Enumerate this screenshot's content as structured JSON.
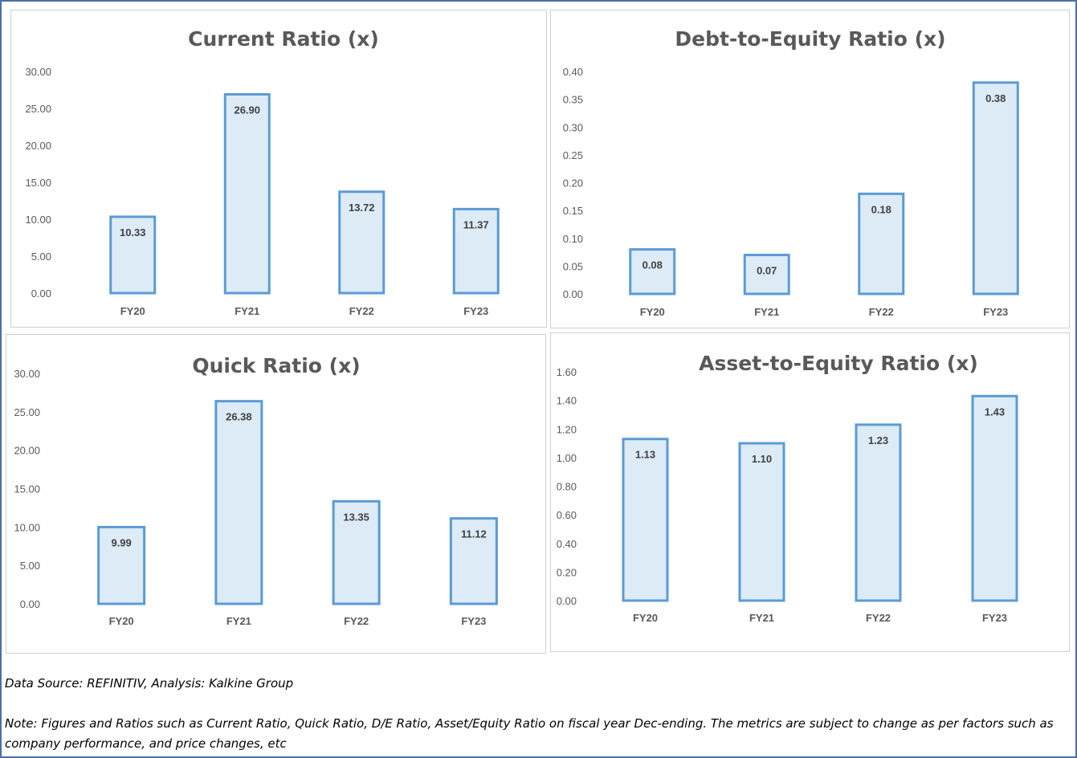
{
  "chart_data": [
    {
      "type": "bar",
      "title": "Current Ratio (x)",
      "categories": [
        "FY20",
        "FY21",
        "FY22",
        "FY23"
      ],
      "values": [
        10.33,
        26.9,
        13.72,
        11.37
      ],
      "data_labels": [
        "10.33",
        "26.90",
        "13.72",
        "11.37"
      ],
      "yticks": [
        "0.00",
        "5.00",
        "10.00",
        "15.00",
        "20.00",
        "25.00",
        "30.00"
      ],
      "ylim": [
        0,
        30
      ],
      "grid": false,
      "legend": "none",
      "bar_fill": "#ddebf7",
      "bar_outline": "#5b9bd5"
    },
    {
      "type": "bar",
      "title": "Debt-to-Equity Ratio (x)",
      "categories": [
        "FY20",
        "FY21",
        "FY22",
        "FY23"
      ],
      "values": [
        0.08,
        0.07,
        0.18,
        0.38
      ],
      "data_labels": [
        "0.08",
        "0.07",
        "0.18",
        "0.38"
      ],
      "yticks": [
        "0.00",
        "0.05",
        "0.10",
        "0.15",
        "0.20",
        "0.25",
        "0.30",
        "0.35",
        "0.40"
      ],
      "ylim": [
        0,
        0.4
      ],
      "grid": false,
      "legend": "none",
      "bar_fill": "#ddebf7",
      "bar_outline": "#5b9bd5"
    },
    {
      "type": "bar",
      "title": "Quick Ratio (x)",
      "categories": [
        "FY20",
        "FY21",
        "FY22",
        "FY23"
      ],
      "values": [
        9.99,
        26.38,
        13.35,
        11.12
      ],
      "data_labels": [
        "9.99",
        "26.38",
        "13.35",
        "11.12"
      ],
      "yticks": [
        "0.00",
        "5.00",
        "10.00",
        "15.00",
        "20.00",
        "25.00",
        "30.00"
      ],
      "ylim": [
        0,
        30
      ],
      "grid": false,
      "legend": "none",
      "bar_fill": "#ddebf7",
      "bar_outline": "#5b9bd5"
    },
    {
      "type": "bar",
      "title": "Asset-to-Equity Ratio (x)",
      "categories": [
        "FY20",
        "FY21",
        "FY22",
        "FY23"
      ],
      "values": [
        1.13,
        1.1,
        1.23,
        1.43
      ],
      "data_labels": [
        "1.13",
        "1.10",
        "1.23",
        "1.43"
      ],
      "yticks": [
        "0.00",
        "0.20",
        "0.40",
        "0.60",
        "0.80",
        "1.00",
        "1.20",
        "1.40",
        "1.60"
      ],
      "ylim": [
        0,
        1.6
      ],
      "grid": false,
      "legend": "none",
      "bar_fill": "#ddebf7",
      "bar_outline": "#5b9bd5"
    }
  ],
  "footer": {
    "source": "Data Source: REFINITIV, Analysis: Kalkine Group",
    "note": "Note: Figures and Ratios such as Current Ratio, Quick Ratio, D/E Ratio, Asset/Equity Ratio on fiscal year Dec-ending. The metrics are subject to change as per factors such as company performance, and price changes, etc"
  }
}
